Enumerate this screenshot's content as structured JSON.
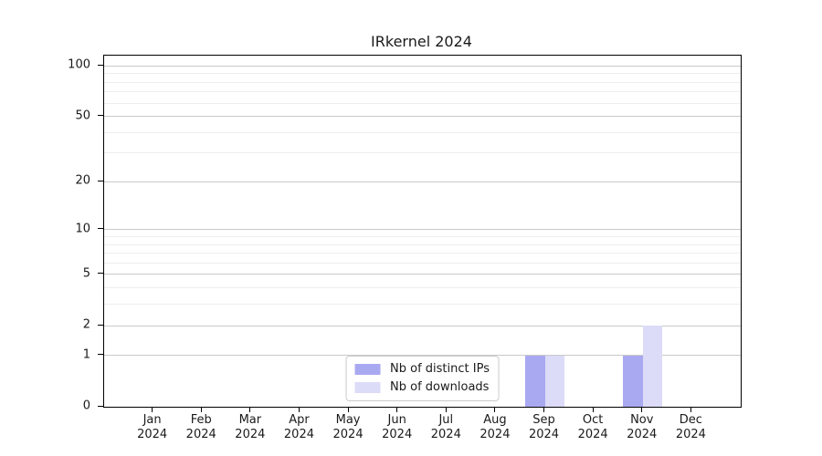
{
  "chart_data": {
    "type": "bar",
    "title": "IRkernel 2024",
    "categories": [
      "Jan",
      "Feb",
      "Mar",
      "Apr",
      "May",
      "Jun",
      "Jul",
      "Aug",
      "Sep",
      "Oct",
      "Nov",
      "Dec"
    ],
    "year_label": "2024",
    "series": [
      {
        "name": "Nb of distinct IPs",
        "color": "#a9a9f2",
        "values": [
          0,
          0,
          0,
          0,
          0,
          0,
          0,
          0,
          1,
          0,
          1,
          0
        ]
      },
      {
        "name": "Nb of downloads",
        "color": "#dcdcf8",
        "values": [
          0,
          0,
          0,
          0,
          0,
          0,
          0,
          0,
          1,
          0,
          2,
          0
        ]
      }
    ],
    "y_axis": {
      "scale": "log1p",
      "major_ticks": [
        100,
        50,
        20,
        10,
        5,
        2,
        1,
        0
      ],
      "minor_ticks": [
        3,
        4,
        6,
        7,
        8,
        9,
        30,
        40,
        60,
        70,
        80,
        90
      ],
      "max": 115
    },
    "xlabel": "",
    "ylabel": "",
    "grid": "both",
    "legend_position": "lower center"
  },
  "colors": {
    "background": "#ffffff",
    "spine": "#000000",
    "grid_major": "#c9c9c9",
    "grid_minor": "#ededed",
    "text": "#1a1a1a",
    "legend_border": "#cccccc"
  }
}
